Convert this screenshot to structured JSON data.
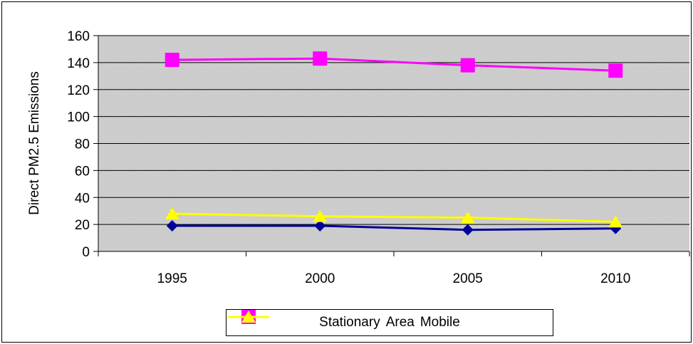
{
  "chart_data": {
    "type": "line",
    "title": "",
    "xlabel": "",
    "ylabel": "Direct PM2.5 Emissions",
    "categories": [
      "1995",
      "2000",
      "2005",
      "2010"
    ],
    "ylim": [
      0,
      160
    ],
    "yticks": [
      0,
      20,
      40,
      60,
      80,
      100,
      120,
      140,
      160
    ],
    "grid": true,
    "legend_position": "bottom",
    "plot_background": "#c0c0c0",
    "series": [
      {
        "name": "Stationary",
        "values": [
          19,
          19,
          16,
          17
        ],
        "color": "#000099",
        "marker": "diamond"
      },
      {
        "name": "Area",
        "values": [
          142,
          143,
          138,
          134
        ],
        "color": "#ff00ff",
        "marker": "square"
      },
      {
        "name": "Mobile",
        "values": [
          28,
          26,
          25,
          22
        ],
        "color": "#ffff00",
        "marker": "triangle"
      }
    ]
  }
}
